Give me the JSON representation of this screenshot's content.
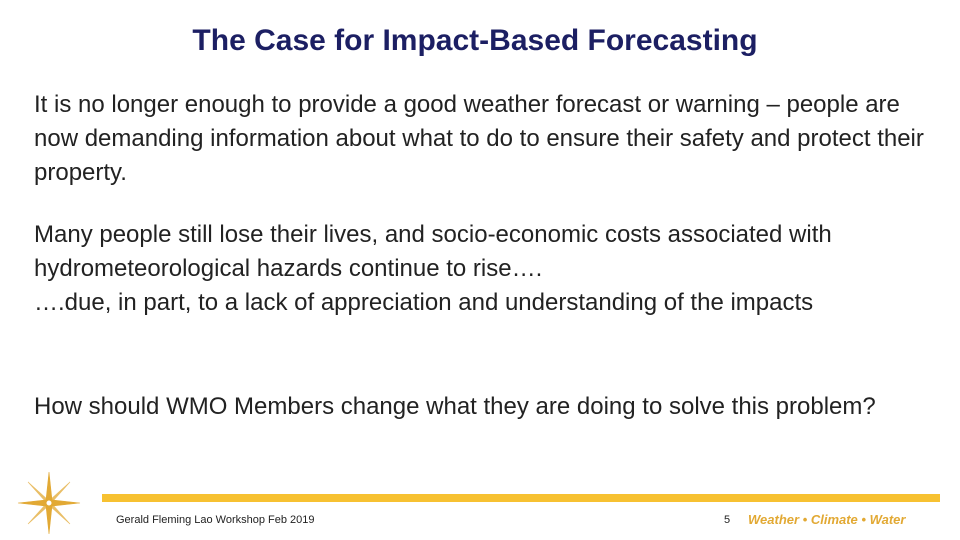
{
  "slide": {
    "title": "The Case for Impact-Based Forecasting",
    "paragraphs": [
      "It is no longer enough to provide a good weather forecast or warning – people are now demanding information about what to do to ensure their safety and protect their property.",
      "Many people still lose their lives, and socio-economic costs associated with hydrometeorological hazards continue to rise…. \n….due, in part, to a lack of appreciation and understanding of the impacts",
      "How should WMO Members change what they are doing to solve this problem?"
    ]
  },
  "footer": {
    "left_text": "Gerald Fleming Lao Workshop Feb 2019",
    "page_number": "5",
    "brand": "Weather • Climate • Water",
    "accent_color": "#f7c131"
  },
  "logo": {
    "icon": "compass-star-icon",
    "color": "#e2a934"
  }
}
